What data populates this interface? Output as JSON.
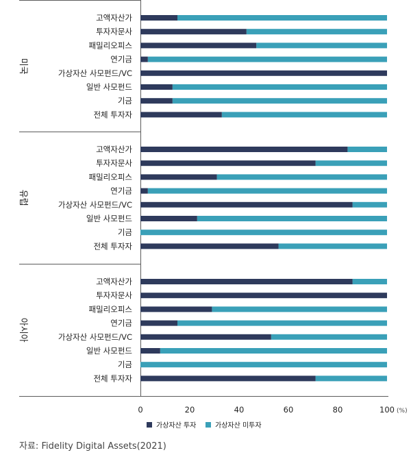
{
  "chart_data": {
    "type": "bar",
    "orientation": "horizontal",
    "stacked": true,
    "xlim": [
      0,
      100
    ],
    "xticks": [
      "0",
      "20",
      "40",
      "60",
      "80",
      "100"
    ],
    "x_unit": "(%)",
    "grid": false,
    "legend_position": "bottom",
    "legend": [
      "가상자산 투자",
      "가상자산 미투자"
    ],
    "colors": {
      "invested": "#2e3a5c",
      "not_invested": "#3aa0b8"
    },
    "groups": [
      {
        "name": "미국",
        "categories": [
          "고액자산가",
          "투자자문사",
          "패밀리오피스",
          "연기금",
          "가상자산 사모펀드/VC",
          "일반 사모펀드",
          "기금",
          "전체 투자자"
        ],
        "invested": [
          15,
          43,
          47,
          3,
          100,
          13,
          13,
          33
        ]
      },
      {
        "name": "유럽",
        "categories": [
          "고액자산가",
          "투자자문사",
          "패밀리오피스",
          "연기금",
          "가상자산 사모펀드/VC",
          "일반 사모펀드",
          "기금",
          "전체 투자자"
        ],
        "invested": [
          84,
          71,
          31,
          3,
          86,
          23,
          0,
          56
        ]
      },
      {
        "name": "아시아",
        "categories": [
          "고액자산가",
          "투자자문사",
          "패밀리오피스",
          "연기금",
          "가상자산 사모펀드/VC",
          "일반 사모펀드",
          "기금",
          "전체 투자자"
        ],
        "invested": [
          86,
          100,
          29,
          15,
          53,
          8,
          0,
          71
        ]
      }
    ]
  },
  "source": {
    "label": "자료:",
    "text": "Fidelity Digital Assets(2021)"
  }
}
